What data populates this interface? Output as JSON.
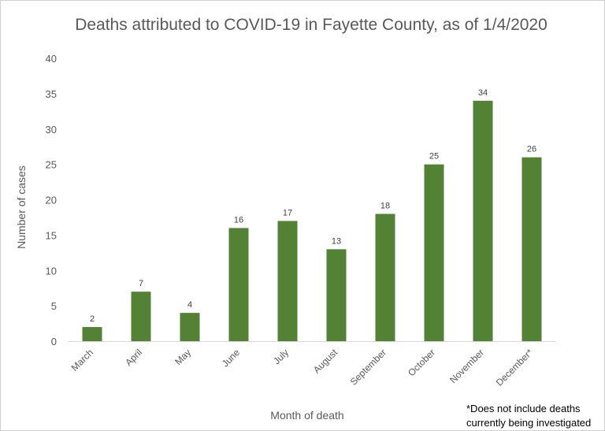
{
  "chart_data": {
    "type": "bar",
    "title": "Deaths attributed to COVID-19 in Fayette County, as of 1/4/2020",
    "xlabel": "Month of death",
    "ylabel": "Number of cases",
    "categories": [
      "March",
      "April",
      "May",
      "June",
      "July",
      "August",
      "September",
      "October",
      "November",
      "December*"
    ],
    "values": [
      2,
      7,
      4,
      16,
      17,
      13,
      18,
      25,
      34,
      26
    ],
    "ylim": [
      0,
      40
    ],
    "yticks": [
      0,
      5,
      10,
      15,
      20,
      25,
      30,
      35,
      40
    ],
    "data_labels": true,
    "grid": false,
    "legend": "none",
    "bar_color": "#548235",
    "footnote_line1": "*Does not include deaths",
    "footnote_line2": "currently being investigated"
  }
}
